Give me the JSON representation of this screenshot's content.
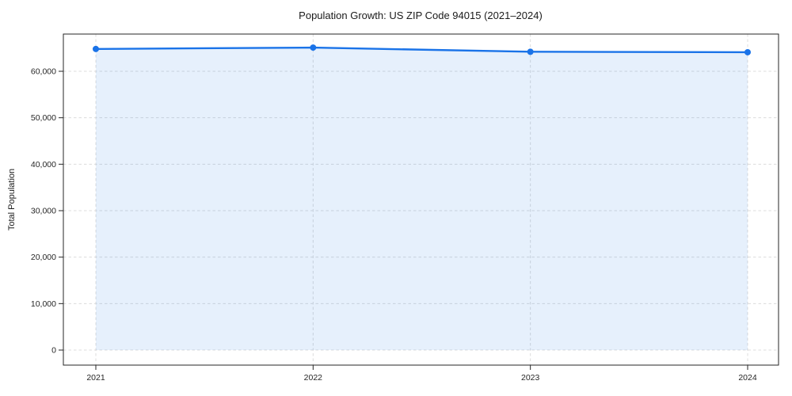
{
  "chart_data": {
    "type": "area",
    "title": "Population Growth: US ZIP Code 94015 (2021–2024)",
    "xlabel": "",
    "ylabel": "Total Population",
    "categories": [
      "2021",
      "2022",
      "2023",
      "2024"
    ],
    "series": [
      {
        "name": "Total Population",
        "values": [
          64800,
          65100,
          64200,
          64100
        ]
      }
    ],
    "ytick_values": [
      0,
      10000,
      20000,
      30000,
      40000,
      50000,
      60000
    ],
    "ytick_labels": [
      "0",
      "10,000",
      "20,000",
      "30,000",
      "40,000",
      "50,000",
      "60,000"
    ],
    "ylim": [
      -3300,
      68400
    ],
    "grid": true,
    "grid_style": "dashed",
    "legend": false,
    "marker": "circle",
    "colors": {
      "line": "#1a73e8",
      "fill": "#1a73e8",
      "fill_opacity": 0.11,
      "grid": "#dcdcdc",
      "spine": "#262626",
      "tick": "#262626",
      "text": "#1a1a1a",
      "background": "#ffffff"
    }
  }
}
